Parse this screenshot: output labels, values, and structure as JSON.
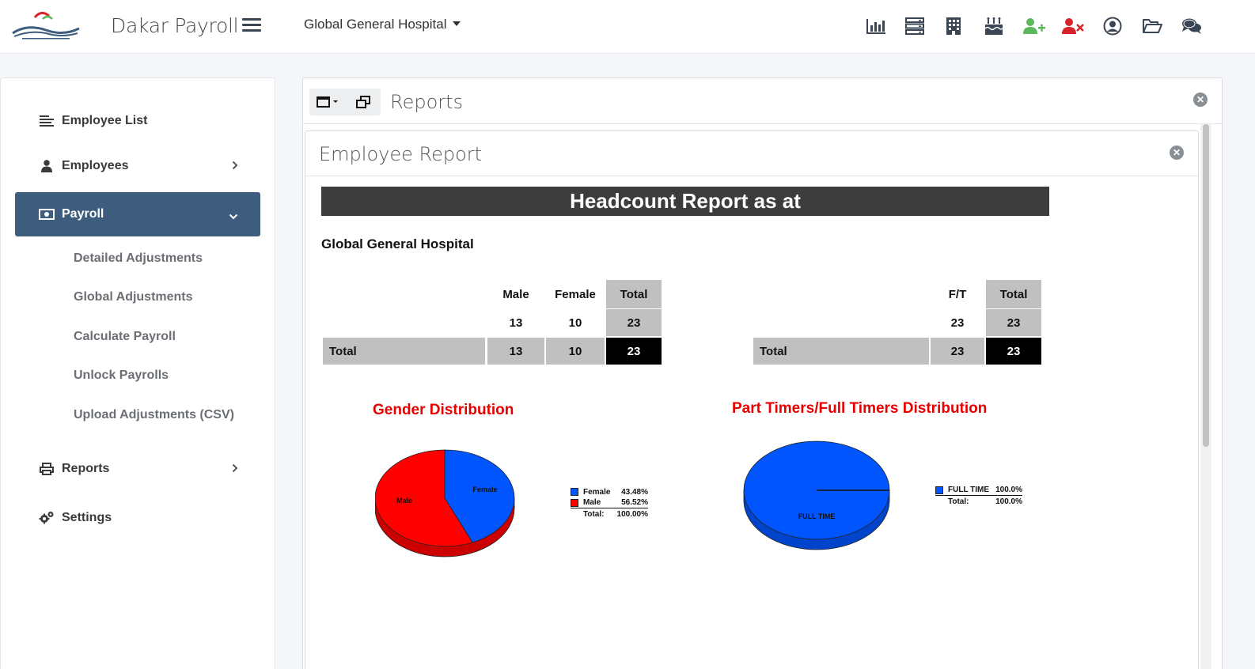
{
  "app": {
    "title": "Dakar Payroll",
    "organization": "Global General Hospital"
  },
  "top_icons": [
    {
      "name": "bar-chart-icon",
      "color": "#3a4654"
    },
    {
      "name": "server-icon",
      "color": "#3a4654"
    },
    {
      "name": "building-icon",
      "color": "#3a4654"
    },
    {
      "name": "birthday-cake-icon",
      "color": "#3a4654"
    },
    {
      "name": "user-plus-icon",
      "color": "#5cb85c"
    },
    {
      "name": "user-times-icon",
      "color": "#d9232a"
    },
    {
      "name": "user-circle-icon",
      "color": "#3a4654"
    },
    {
      "name": "folder-open-icon",
      "color": "#3a4654"
    },
    {
      "name": "comments-icon",
      "color": "#3a4654"
    }
  ],
  "sidebar": {
    "items": [
      {
        "label": "Employee List",
        "icon": "list-icon"
      },
      {
        "label": "Employees",
        "icon": "user-icon"
      },
      {
        "label": "Payroll",
        "icon": "money-icon"
      },
      {
        "label": "Reports",
        "icon": "print-icon"
      },
      {
        "label": "Settings",
        "icon": "cogs-icon"
      }
    ],
    "payroll_sub": [
      "Detailed Adjustments",
      "Global Adjustments",
      "Calculate Payroll",
      "Unlock Payrolls",
      "Upload Adjustments (CSV)"
    ],
    "active_color": "#3e5c7e"
  },
  "panel": {
    "title": "Reports"
  },
  "subpanel": {
    "title": "Employee Report"
  },
  "report": {
    "banner": "Headcount Report as at",
    "organization": "Global General Hospital",
    "gender_table": {
      "headers": [
        "Male",
        "Female",
        "Total"
      ],
      "row": [
        "13",
        "10",
        "23"
      ],
      "total_label": "Total",
      "total_row": [
        "13",
        "10",
        "23"
      ]
    },
    "ft_table": {
      "headers": [
        "F/T",
        "Total"
      ],
      "row": [
        "23",
        "23"
      ],
      "total_label": "Total",
      "total_row": [
        "23",
        "23"
      ]
    },
    "gender_chart": {
      "title": "Gender Distribution",
      "slice_labels": [
        "Female",
        "Male"
      ],
      "legend": [
        {
          "label": "Female",
          "pct": "43.48%",
          "color": "#0055ff"
        },
        {
          "label": "Male",
          "pct": "56.52%",
          "color": "#ff0000"
        }
      ],
      "total_label": "Total:",
      "total_pct": "100.00%"
    },
    "ft_chart": {
      "title": "Part Timers/Full Timers Distribution",
      "slice_labels": [
        "FULL TIME"
      ],
      "legend": [
        {
          "label": "FULL TIME",
          "pct": "100.0%",
          "color": "#0055ff"
        }
      ],
      "total_label": "Total:",
      "total_pct": "100.0%"
    }
  },
  "chart_data": [
    {
      "type": "pie",
      "title": "Gender Distribution",
      "categories": [
        "Female",
        "Male"
      ],
      "values": [
        43.48,
        56.52
      ],
      "colors": [
        "#0055ff",
        "#ff0000"
      ],
      "legend": "right"
    },
    {
      "type": "pie",
      "title": "Part Timers/Full Timers Distribution",
      "categories": [
        "FULL TIME"
      ],
      "values": [
        100.0
      ],
      "colors": [
        "#0055ff"
      ],
      "legend": "right"
    }
  ]
}
